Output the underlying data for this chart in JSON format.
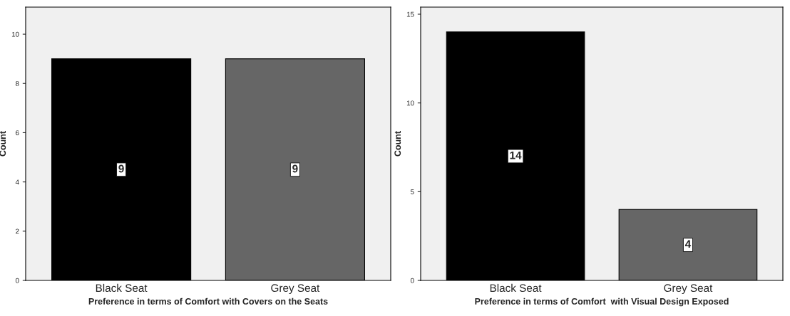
{
  "chart_data": [
    {
      "type": "bar",
      "categories": [
        "Black Seat",
        "Grey Seat"
      ],
      "values": [
        9,
        9
      ],
      "colors": [
        "#000000",
        "#666666"
      ],
      "xlabel": "Preference in terms of Comfort with Covers on the Seats",
      "ylabel": "Count",
      "ylim": [
        0,
        11.1
      ],
      "yticks": [
        0,
        2,
        4,
        6,
        8,
        10
      ],
      "data_labels": true
    },
    {
      "type": "bar",
      "categories": [
        "Black Seat",
        "Grey Seat"
      ],
      "values": [
        14,
        4
      ],
      "colors": [
        "#000000",
        "#666666"
      ],
      "xlabel": "Preference in terms of Comfort  with Visual Design Exposed",
      "ylabel": "Count",
      "ylim": [
        0,
        15.4
      ],
      "yticks": [
        0,
        5,
        10,
        15
      ],
      "data_labels": true
    }
  ]
}
